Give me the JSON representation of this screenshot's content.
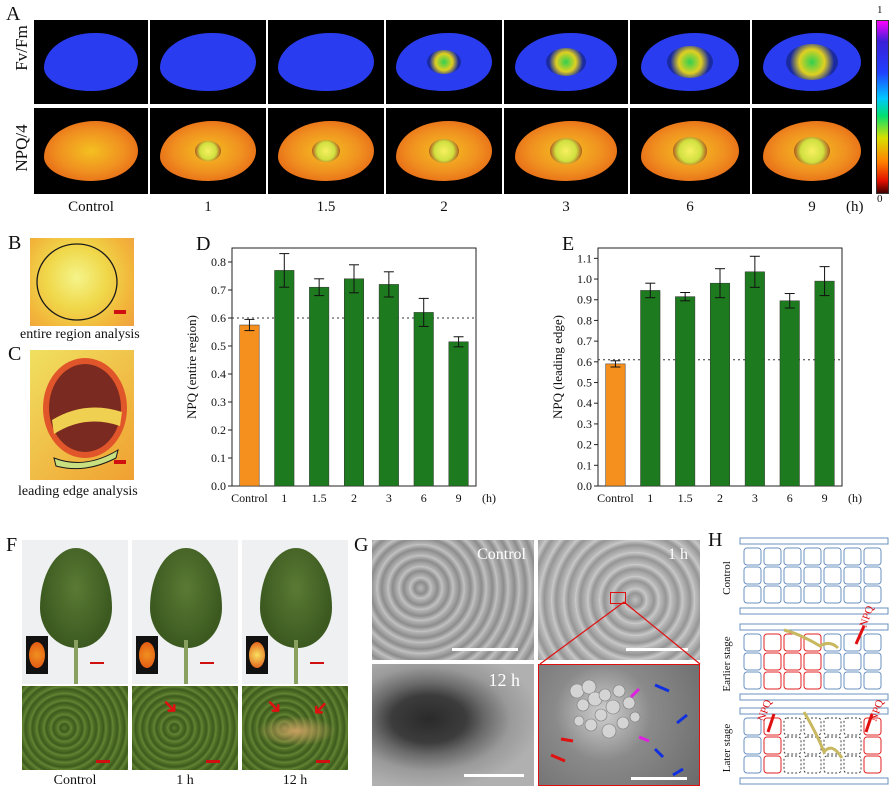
{
  "panels": {
    "A": {
      "letter": "A",
      "row1_label": "Fv/Fm",
      "row2_label": "NPQ/4",
      "time_labels": [
        "Control",
        "1",
        "1.5",
        "2",
        "3",
        "6",
        "9"
      ],
      "unit": "(h)",
      "colorbar_max": "1",
      "colorbar_min": "0"
    },
    "B": {
      "letter": "B",
      "caption": "entire region analysis"
    },
    "C": {
      "letter": "C",
      "caption": "leading edge analysis"
    },
    "F": {
      "letter": "F",
      "labels": [
        "Control",
        "1 h",
        "12 h"
      ]
    },
    "G": {
      "letter": "G",
      "labels": {
        "control": "Control",
        "one_h": "1 h",
        "twelve_h": "12 h"
      }
    },
    "H": {
      "letter": "H",
      "stages": [
        "Control",
        "Earlier stage",
        "Later stage"
      ],
      "npq": "NPQ"
    }
  },
  "chart_data": [
    {
      "id": "D",
      "letter": "D",
      "type": "bar",
      "ylabel": "NPQ (entire region)",
      "unit": "(h)",
      "categories": [
        "Control",
        "1",
        "1.5",
        "2",
        "3",
        "6",
        "9"
      ],
      "values": [
        0.575,
        0.77,
        0.71,
        0.74,
        0.72,
        0.62,
        0.515
      ],
      "errors": [
        0.02,
        0.06,
        0.03,
        0.05,
        0.045,
        0.05,
        0.018
      ],
      "ylim": [
        0.0,
        0.85
      ],
      "yticks": [
        "0.0",
        "0.1",
        "0.2",
        "0.3",
        "0.4",
        "0.5",
        "0.6",
        "0.7",
        "0.8"
      ],
      "reference_line": 0.6,
      "colors": {
        "control": "#f5901e",
        "treatment": "#1e7a1e"
      }
    },
    {
      "id": "E",
      "letter": "E",
      "type": "bar",
      "ylabel": "NPQ (leading edge)",
      "unit": "(h)",
      "categories": [
        "Control",
        "1",
        "1.5",
        "2",
        "3",
        "6",
        "9"
      ],
      "values": [
        0.59,
        0.945,
        0.915,
        0.98,
        1.035,
        0.895,
        0.99
      ],
      "errors": [
        0.015,
        0.035,
        0.02,
        0.07,
        0.075,
        0.035,
        0.07
      ],
      "ylim": [
        0.0,
        1.15
      ],
      "yticks": [
        "0.0",
        "0.1",
        "0.2",
        "0.3",
        "0.4",
        "0.5",
        "0.6",
        "0.7",
        "0.8",
        "0.9",
        "1.0",
        "1.1"
      ],
      "reference_line": 0.61,
      "colors": {
        "control": "#f5901e",
        "treatment": "#1e7a1e"
      }
    }
  ]
}
